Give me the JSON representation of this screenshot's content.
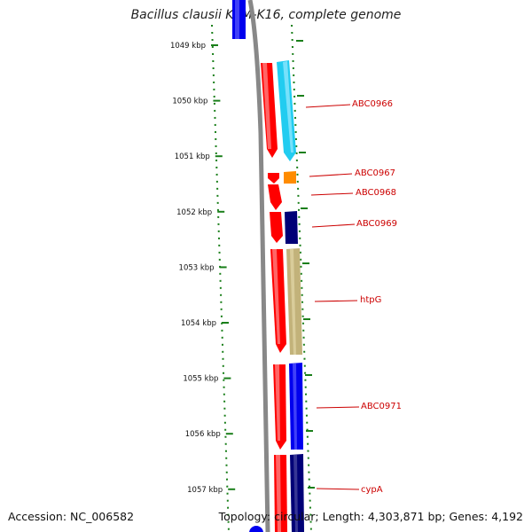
{
  "title": "Bacillus clausii KSM-K16, complete genome",
  "footer": {
    "accession": "Accession: NC_006582",
    "summary": "Topology: circular; Length: 4,303,871 bp; Genes: 4,192"
  },
  "scale_ticks": [
    "1049 kbp",
    "1050 kbp",
    "1051 kbp",
    "1052 kbp",
    "1053 kbp",
    "1054 kbp",
    "1055 kbp",
    "1056 kbp",
    "1057 kbp"
  ],
  "colors": {
    "backbone": "#888888",
    "forward_strand_gene": "#ff0000",
    "tick_green": "#1a7f1a",
    "label_red": "#cc0000",
    "blue_gene": "#0000ee",
    "navy_gene": "#000077",
    "cyan_gene": "#22ccf0",
    "orange_gene": "#ff8c00",
    "khaki_gene": "#c2b27a"
  },
  "genes": [
    {
      "label": "ABC0966",
      "color": "#22ccf0"
    },
    {
      "label": "ABC0967",
      "color": "#ff8c00"
    },
    {
      "label": "ABC0968",
      "color": "#ff0000"
    },
    {
      "label": "ABC0969",
      "color": "#000077"
    },
    {
      "label": "htpG",
      "color": "#c2b27a"
    },
    {
      "label": "ABC0971",
      "color": "#0000ee"
    },
    {
      "label": "cypA",
      "color": "#000077"
    }
  ]
}
